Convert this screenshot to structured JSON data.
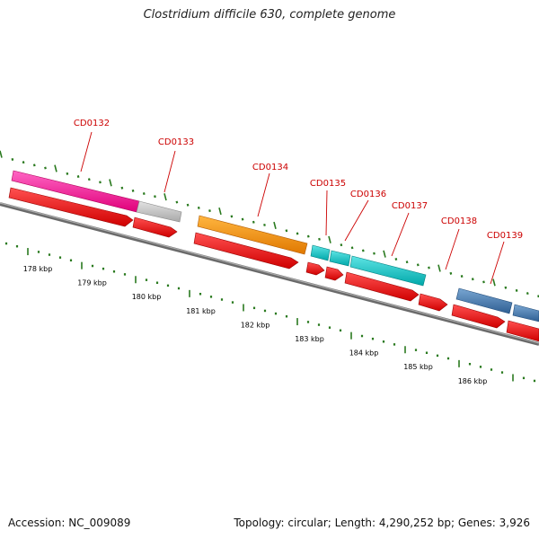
{
  "header": {
    "title": "Clostridium difficile 630, complete genome"
  },
  "footer": {
    "accession": "Accession: NC_009089",
    "summary": "Topology: circular; Length: 4,290,252 bp; Genes: 3,926"
  },
  "map": {
    "ruler": [
      "178 kbp",
      "179 kbp",
      "180 kbp",
      "181 kbp",
      "182 kbp",
      "183 kbp",
      "184 kbp",
      "185 kbp",
      "186 kbp"
    ],
    "gene_labels": [
      "CD0132",
      "CD0133",
      "CD0134",
      "CD0135",
      "CD0136",
      "CD0137",
      "CD0138",
      "CD0139"
    ],
    "colors": {
      "label": "#cc0000",
      "tick": "#2a7a1f",
      "backbone": "#888888",
      "cds": "#ff1010",
      "cog_pink": "#ff2aa0",
      "cog_gray": "#c8c8c8",
      "cog_orange": "#ff9000",
      "cog_cyan": "#18c8c8",
      "cog_blue": "#4a7fb5"
    }
  }
}
